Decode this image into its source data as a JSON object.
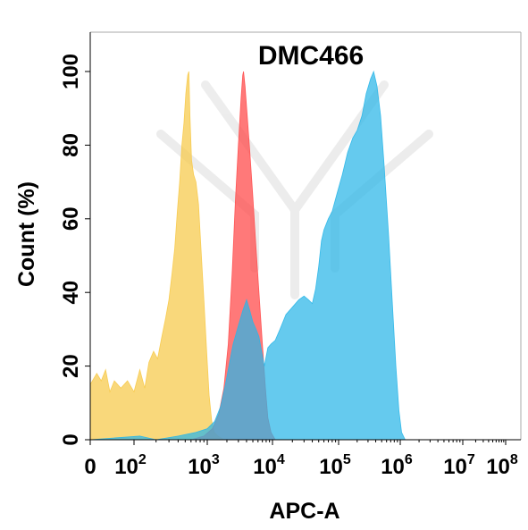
{
  "chart_data": {
    "type": "area",
    "title": "DMC466",
    "xlabel": "APC-A",
    "ylabel": "Count  (%)",
    "x_scale": "biexponential",
    "xlim": [
      0,
      100000000
    ],
    "ylim": [
      0,
      105
    ],
    "x_ticks": [
      {
        "value": 0,
        "base": "0",
        "exp": ""
      },
      {
        "value": 100,
        "base": "10",
        "exp": "2"
      },
      {
        "value": 1000,
        "base": "10",
        "exp": "3"
      },
      {
        "value": 10000,
        "base": "10",
        "exp": "4"
      },
      {
        "value": 100000,
        "base": "10",
        "exp": "5"
      },
      {
        "value": 1000000,
        "base": "10",
        "exp": "6"
      },
      {
        "value": 10000000,
        "base": "10",
        "exp": "7"
      },
      {
        "value": 100000000,
        "base": "10",
        "exp": "8"
      }
    ],
    "y_ticks": [
      "0",
      "20",
      "40",
      "60",
      "80",
      "100"
    ],
    "grid": false,
    "legend": "none",
    "series": [
      {
        "color": "#f7c948",
        "opacity": 0.72,
        "points": [
          [
            0,
            15
          ],
          [
            15,
            18
          ],
          [
            25,
            16
          ],
          [
            35,
            19
          ],
          [
            45,
            13
          ],
          [
            55,
            16
          ],
          [
            70,
            14
          ],
          [
            85,
            16
          ],
          [
            100,
            13
          ],
          [
            120,
            19
          ],
          [
            140,
            14
          ],
          [
            160,
            21
          ],
          [
            185,
            24
          ],
          [
            210,
            22
          ],
          [
            240,
            28
          ],
          [
            270,
            33
          ],
          [
            300,
            38
          ],
          [
            330,
            45
          ],
          [
            360,
            52
          ],
          [
            390,
            62
          ],
          [
            420,
            70
          ],
          [
            450,
            80
          ],
          [
            480,
            86
          ],
          [
            510,
            94
          ],
          [
            540,
            99
          ],
          [
            560,
            100
          ],
          [
            580,
            88
          ],
          [
            610,
            76
          ],
          [
            650,
            72
          ],
          [
            700,
            70
          ],
          [
            760,
            64
          ],
          [
            830,
            50
          ],
          [
            900,
            38
          ],
          [
            980,
            24
          ],
          [
            1070,
            12
          ],
          [
            1170,
            5
          ],
          [
            1280,
            2
          ],
          [
            1450,
            1
          ],
          [
            1800,
            0
          ]
        ]
      },
      {
        "color": "#ff4c4c",
        "opacity": 0.75,
        "points": [
          [
            600,
            0
          ],
          [
            900,
            1
          ],
          [
            1200,
            3
          ],
          [
            1500,
            7
          ],
          [
            1800,
            14
          ],
          [
            2100,
            26
          ],
          [
            2400,
            45
          ],
          [
            2700,
            65
          ],
          [
            3000,
            80
          ],
          [
            3300,
            93
          ],
          [
            3500,
            99
          ],
          [
            3600,
            100
          ],
          [
            3800,
            96
          ],
          [
            4100,
            88
          ],
          [
            4500,
            78
          ],
          [
            5000,
            66
          ],
          [
            5600,
            52
          ],
          [
            6300,
            38
          ],
          [
            7000,
            26
          ],
          [
            7800,
            14
          ],
          [
            8500,
            6
          ],
          [
            9500,
            2
          ],
          [
            11000,
            0
          ]
        ]
      },
      {
        "color": "#29b6e8",
        "opacity": 0.72,
        "points": [
          [
            0,
            0
          ],
          [
            120,
            1
          ],
          [
            200,
            0
          ],
          [
            400,
            1
          ],
          [
            700,
            2
          ],
          [
            1000,
            3
          ],
          [
            1300,
            5
          ],
          [
            1600,
            9
          ],
          [
            1900,
            15
          ],
          [
            2200,
            21
          ],
          [
            2500,
            26
          ],
          [
            3000,
            31
          ],
          [
            3500,
            35
          ],
          [
            4000,
            38
          ],
          [
            4500,
            35
          ],
          [
            5000,
            32
          ],
          [
            5600,
            30
          ],
          [
            6200,
            28
          ],
          [
            6800,
            24
          ],
          [
            7500,
            20
          ],
          [
            8500,
            25
          ],
          [
            9500,
            26
          ],
          [
            11000,
            27
          ],
          [
            13000,
            30
          ],
          [
            16000,
            34
          ],
          [
            20000,
            36
          ],
          [
            25000,
            38
          ],
          [
            30000,
            39
          ],
          [
            35000,
            38
          ],
          [
            40000,
            37
          ],
          [
            45000,
            41
          ],
          [
            50000,
            47
          ],
          [
            55000,
            54
          ],
          [
            60000,
            57
          ],
          [
            70000,
            60
          ],
          [
            80000,
            62
          ],
          [
            95000,
            67
          ],
          [
            115000,
            72
          ],
          [
            140000,
            78
          ],
          [
            170000,
            82
          ],
          [
            200000,
            84
          ],
          [
            240000,
            88
          ],
          [
            280000,
            94
          ],
          [
            330000,
            98
          ],
          [
            370000,
            100
          ],
          [
            420000,
            96
          ],
          [
            480000,
            88
          ],
          [
            550000,
            74
          ],
          [
            650000,
            55
          ],
          [
            750000,
            36
          ],
          [
            850000,
            20
          ],
          [
            950000,
            8
          ],
          [
            1050000,
            2
          ],
          [
            1200000,
            0
          ]
        ]
      }
    ]
  }
}
